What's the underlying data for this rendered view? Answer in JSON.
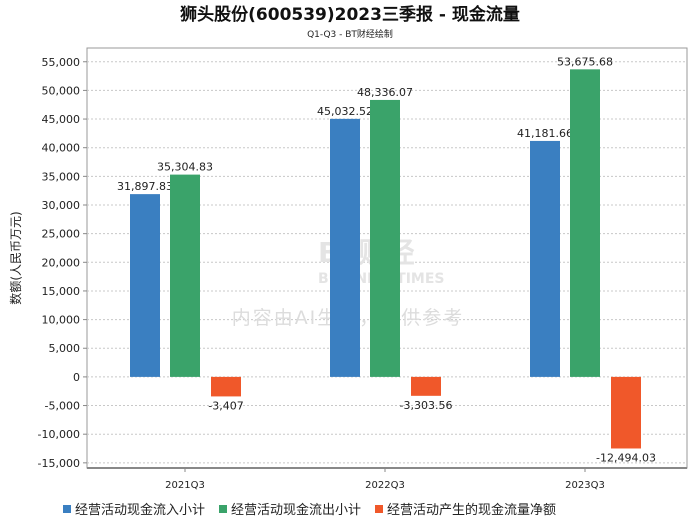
{
  "chart_data": {
    "type": "bar",
    "title": "狮头股份(600539)2023三季报 - 现金流量",
    "subtitle": "Q1-Q3 - BT财经绘制",
    "ylabel": "数额(人民币万元)",
    "xlabel": "",
    "ylim": [
      -15900,
      57400
    ],
    "yticks": [
      55000,
      50000,
      45000,
      40000,
      35000,
      30000,
      25000,
      20000,
      15000,
      10000,
      5000,
      0,
      -5000,
      -10000,
      -15000
    ],
    "ytick_labels": [
      "55,000",
      "50,000",
      "45,000",
      "40,000",
      "35,000",
      "30,000",
      "25,000",
      "20,000",
      "15,000",
      "10,000",
      "5,000",
      "0",
      "-5,000",
      "-10,000",
      "-15,000"
    ],
    "categories": [
      "2021Q3",
      "2022Q3",
      "2023Q3"
    ],
    "grid": true,
    "legend_position": "bottom",
    "series": [
      {
        "name": "经营活动现金流入小计",
        "color": "#3a7fc1",
        "values": [
          31897.83,
          45032.52,
          41181.66
        ],
        "labels": [
          "31,897.83",
          "45,032.52",
          "41,181.66"
        ]
      },
      {
        "name": "经营活动现金流出小计",
        "color": "#3aa36a",
        "values": [
          35304.83,
          48336.07,
          53675.68
        ],
        "labels": [
          "35,304.83",
          "48,336.07",
          "53,675.68"
        ]
      },
      {
        "name": "经营活动产生的现金流量净额",
        "color": "#f0582a",
        "values": [
          -3407,
          -3303.56,
          -12494.03
        ],
        "labels": [
          "-3,407",
          "-3,303.56",
          "-12,494.03"
        ]
      }
    ]
  },
  "watermark": {
    "logo": "BT财经",
    "logo_sub": "BUSINESSTIMES",
    "notice": "内容由AI生成，仅供参考"
  }
}
